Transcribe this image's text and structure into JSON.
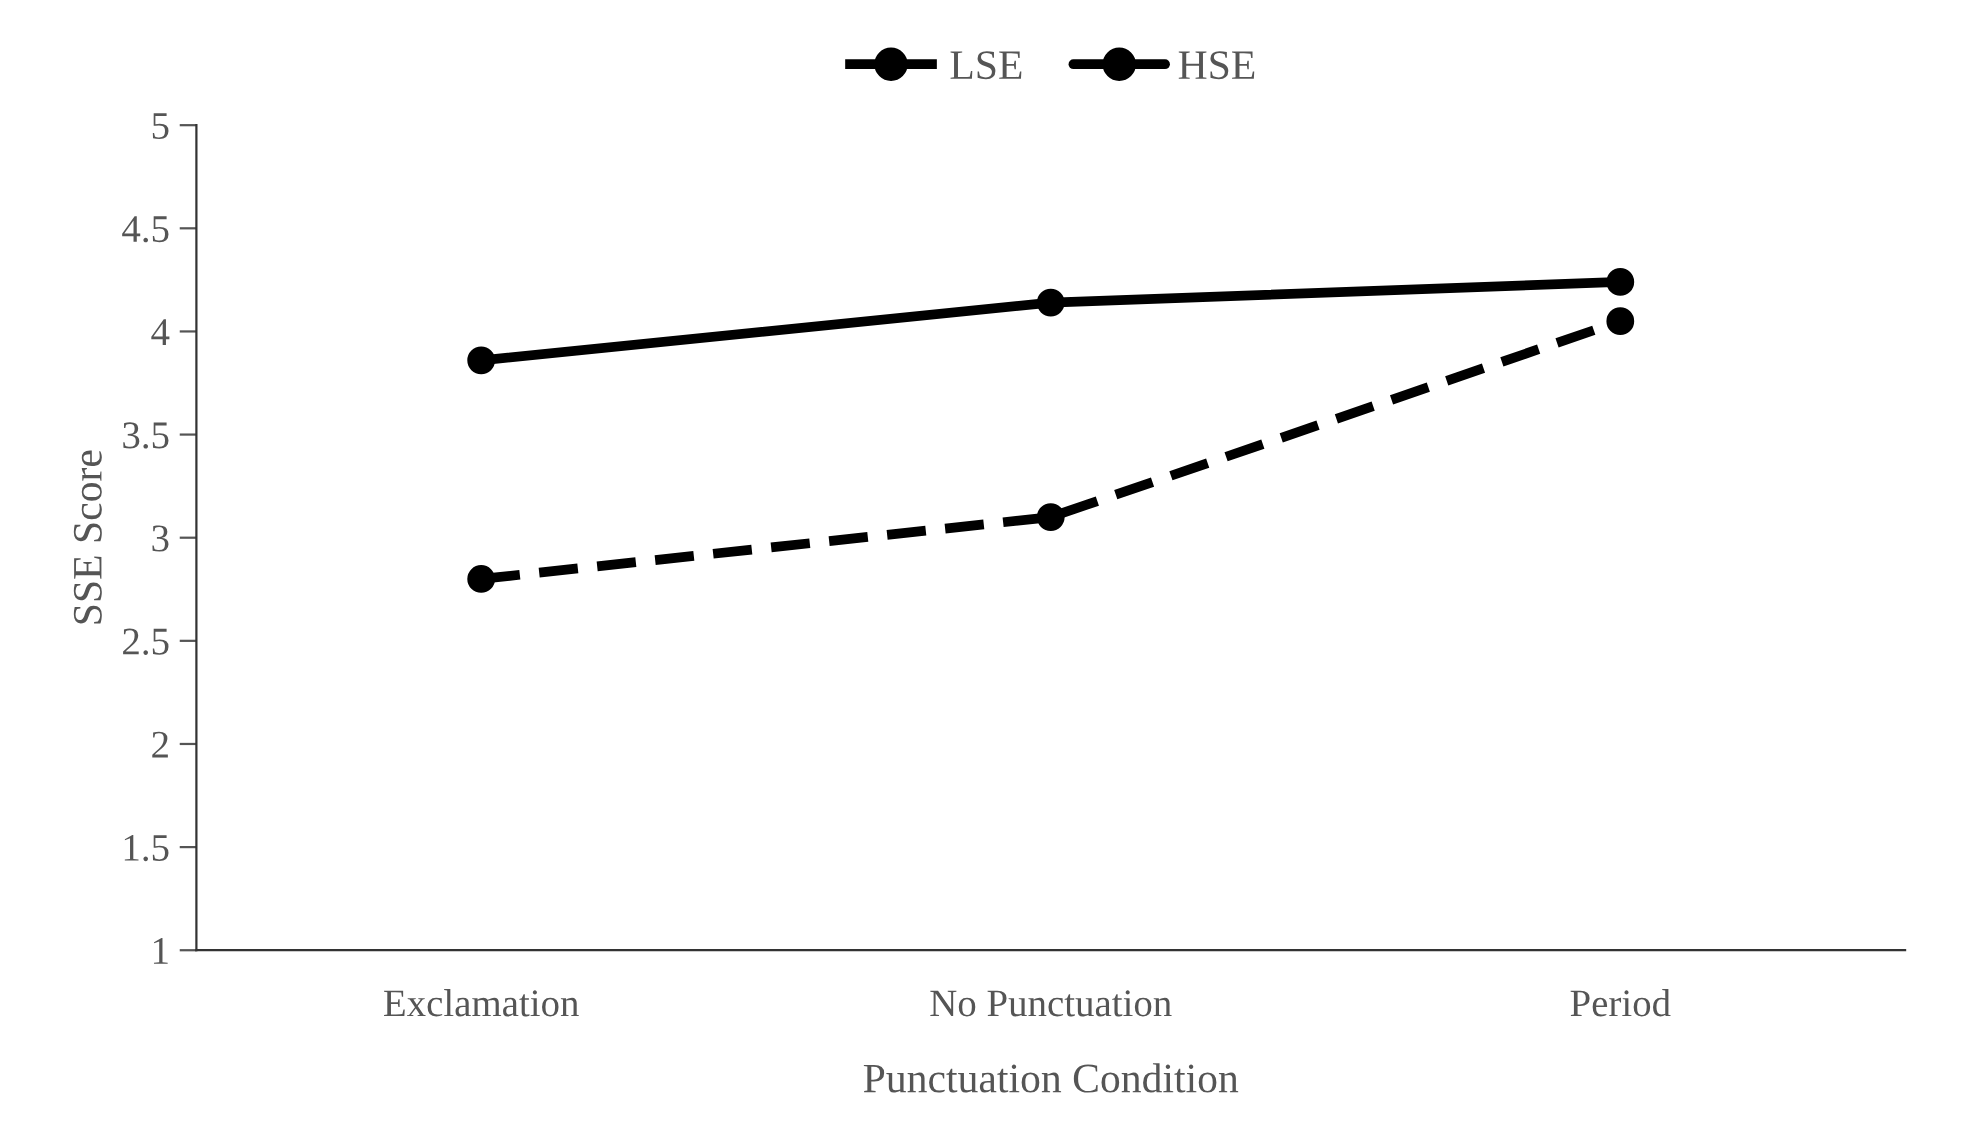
{
  "chart_data": {
    "type": "line",
    "xlabel": "Punctuation Condition",
    "ylabel": "SSE Score",
    "categories": [
      "Exclamation",
      "No Punctuation",
      "Period"
    ],
    "series": [
      {
        "name": "LSE",
        "color": "#000000",
        "values": [
          2.8,
          3.1,
          4.05
        ],
        "line_style": "dashed"
      },
      {
        "name": "HSE",
        "color": "#000000",
        "values": [
          3.86,
          4.14,
          4.24
        ],
        "line_style": "solid"
      }
    ],
    "ylim": [
      1,
      5
    ],
    "yticks": [
      1,
      1.5,
      2,
      2.5,
      3,
      3.5,
      4,
      4.5,
      5
    ],
    "grid": false,
    "legend": "top",
    "marker": "circle"
  }
}
